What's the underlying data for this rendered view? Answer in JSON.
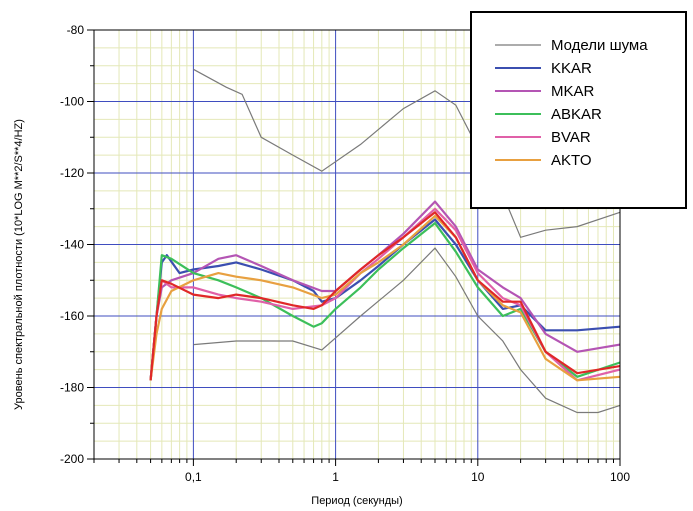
{
  "chart_data": {
    "type": "line",
    "xlabel": "Период (секунды)",
    "ylabel": "Уровень спектральной плотности (10*LOG M**2/S**4/HZ)",
    "x_scale": "log",
    "xlim": [
      0.02,
      100
    ],
    "ylim": [
      -200,
      -80
    ],
    "x_ticks": [
      {
        "value": 0.1,
        "label": "0,1"
      },
      {
        "value": 1,
        "label": "1"
      },
      {
        "value": 10,
        "label": "10"
      },
      {
        "value": 100,
        "label": "100"
      }
    ],
    "y_ticks": [
      -200,
      -180,
      -160,
      -140,
      -120,
      -100,
      -80
    ],
    "grid": true,
    "legend_position": "top-right",
    "series": [
      {
        "name": "Модели шума",
        "color": "#7a7a7a",
        "segments": [
          [
            [
              0.1,
              -91
            ],
            [
              0.17,
              -96
            ],
            [
              0.22,
              -98
            ],
            [
              0.3,
              -110
            ],
            [
              0.5,
              -115
            ],
            [
              0.8,
              -119.5
            ],
            [
              1.5,
              -112
            ],
            [
              3,
              -102
            ],
            [
              5,
              -97
            ],
            [
              7,
              -101
            ],
            [
              10,
              -113
            ],
            [
              15,
              -126
            ],
            [
              20,
              -138
            ],
            [
              30,
              -136
            ],
            [
              50,
              -135
            ],
            [
              100,
              -131
            ]
          ],
          [
            [
              0.1,
              -168
            ],
            [
              0.2,
              -167
            ],
            [
              0.5,
              -167
            ],
            [
              0.8,
              -169.5
            ],
            [
              1.5,
              -160
            ],
            [
              3,
              -150
            ],
            [
              5,
              -141
            ],
            [
              7,
              -149
            ],
            [
              10,
              -160
            ],
            [
              15,
              -167
            ],
            [
              20,
              -175
            ],
            [
              30,
              -183
            ],
            [
              50,
              -187
            ],
            [
              70,
              -187
            ],
            [
              100,
              -185
            ]
          ]
        ]
      },
      {
        "name": "KKAR",
        "color": "#3b4fb0",
        "points": [
          [
            0.05,
            -178
          ],
          [
            0.055,
            -160
          ],
          [
            0.06,
            -145
          ],
          [
            0.065,
            -143
          ],
          [
            0.08,
            -148
          ],
          [
            0.1,
            -147
          ],
          [
            0.15,
            -146
          ],
          [
            0.2,
            -145
          ],
          [
            0.3,
            -147
          ],
          [
            0.5,
            -150
          ],
          [
            0.7,
            -153
          ],
          [
            0.8,
            -156
          ],
          [
            1,
            -155
          ],
          [
            1.5,
            -150
          ],
          [
            2,
            -146
          ],
          [
            3,
            -140
          ],
          [
            5,
            -133
          ],
          [
            7,
            -140
          ],
          [
            10,
            -150
          ],
          [
            15,
            -158
          ],
          [
            20,
            -157
          ],
          [
            30,
            -164
          ],
          [
            50,
            -164
          ],
          [
            100,
            -163
          ]
        ]
      },
      {
        "name": "MKAR",
        "color": "#b455b4",
        "points": [
          [
            0.05,
            -178
          ],
          [
            0.055,
            -160
          ],
          [
            0.06,
            -152
          ],
          [
            0.07,
            -150
          ],
          [
            0.1,
            -148
          ],
          [
            0.15,
            -144
          ],
          [
            0.2,
            -143
          ],
          [
            0.3,
            -146
          ],
          [
            0.5,
            -150
          ],
          [
            0.8,
            -153
          ],
          [
            1,
            -153
          ],
          [
            1.5,
            -147
          ],
          [
            2,
            -143
          ],
          [
            3,
            -137
          ],
          [
            5,
            -128
          ],
          [
            7,
            -135
          ],
          [
            10,
            -147
          ],
          [
            15,
            -152
          ],
          [
            20,
            -155
          ],
          [
            30,
            -165
          ],
          [
            50,
            -170
          ],
          [
            100,
            -168
          ]
        ]
      },
      {
        "name": "ABKAR",
        "color": "#3cbf5a",
        "points": [
          [
            0.05,
            -178
          ],
          [
            0.055,
            -160
          ],
          [
            0.06,
            -143
          ],
          [
            0.07,
            -144
          ],
          [
            0.1,
            -148
          ],
          [
            0.15,
            -150
          ],
          [
            0.2,
            -152
          ],
          [
            0.3,
            -155
          ],
          [
            0.5,
            -160
          ],
          [
            0.7,
            -163
          ],
          [
            0.8,
            -162
          ],
          [
            1,
            -158
          ],
          [
            1.5,
            -152
          ],
          [
            2,
            -147
          ],
          [
            3,
            -141
          ],
          [
            5,
            -134
          ],
          [
            7,
            -142
          ],
          [
            10,
            -152
          ],
          [
            15,
            -160
          ],
          [
            20,
            -158
          ],
          [
            30,
            -170
          ],
          [
            50,
            -177
          ],
          [
            100,
            -173
          ]
        ]
      },
      {
        "name": "BVAR",
        "color": "#e060a8",
        "points": [
          [
            0.05,
            -178
          ],
          [
            0.055,
            -160
          ],
          [
            0.06,
            -150
          ],
          [
            0.07,
            -152
          ],
          [
            0.1,
            -152
          ],
          [
            0.15,
            -154
          ],
          [
            0.2,
            -155
          ],
          [
            0.3,
            -156
          ],
          [
            0.5,
            -158
          ],
          [
            0.8,
            -157
          ],
          [
            1,
            -155
          ],
          [
            1.5,
            -148
          ],
          [
            2,
            -144
          ],
          [
            3,
            -138
          ],
          [
            5,
            -130
          ],
          [
            7,
            -136
          ],
          [
            10,
            -148
          ],
          [
            15,
            -155
          ],
          [
            20,
            -157
          ],
          [
            30,
            -170
          ],
          [
            50,
            -178
          ],
          [
            100,
            -175
          ]
        ]
      },
      {
        "name": "AKTO",
        "color": "#e8a040",
        "points": [
          [
            0.05,
            -178
          ],
          [
            0.055,
            -165
          ],
          [
            0.06,
            -158
          ],
          [
            0.07,
            -153
          ],
          [
            0.1,
            -150
          ],
          [
            0.15,
            -148
          ],
          [
            0.2,
            -149
          ],
          [
            0.3,
            -150
          ],
          [
            0.5,
            -152
          ],
          [
            0.8,
            -155
          ],
          [
            1,
            -154
          ],
          [
            1.5,
            -148
          ],
          [
            2,
            -145
          ],
          [
            3,
            -140
          ],
          [
            5,
            -132
          ],
          [
            7,
            -138
          ],
          [
            10,
            -150
          ],
          [
            15,
            -157
          ],
          [
            20,
            -159
          ],
          [
            30,
            -172
          ],
          [
            50,
            -178
          ],
          [
            100,
            -177
          ]
        ]
      },
      {
        "color": "#e02828",
        "points": [
          [
            0.05,
            -178
          ],
          [
            0.055,
            -160
          ],
          [
            0.06,
            -150
          ],
          [
            0.07,
            -151
          ],
          [
            0.1,
            -154
          ],
          [
            0.15,
            -155
          ],
          [
            0.2,
            -154
          ],
          [
            0.3,
            -155
          ],
          [
            0.5,
            -157
          ],
          [
            0.7,
            -158
          ],
          [
            0.8,
            -157
          ],
          [
            1,
            -153
          ],
          [
            1.5,
            -147
          ],
          [
            2,
            -143
          ],
          [
            3,
            -138
          ],
          [
            5,
            -131
          ],
          [
            7,
            -138
          ],
          [
            10,
            -150
          ],
          [
            15,
            -156
          ],
          [
            20,
            -156
          ],
          [
            30,
            -170
          ],
          [
            50,
            -176
          ],
          [
            100,
            -174
          ]
        ]
      }
    ]
  }
}
